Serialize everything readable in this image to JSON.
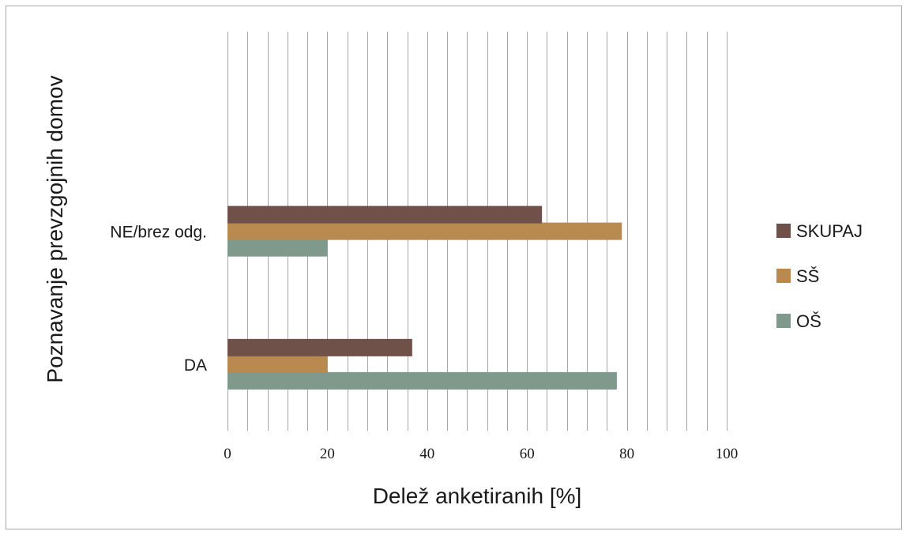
{
  "chart_data": {
    "type": "bar",
    "orientation": "horizontal",
    "categories": [
      "DA",
      "NE/brez odg."
    ],
    "series": [
      {
        "name": "OŠ",
        "values": [
          78,
          20
        ],
        "color": "#7f9a8c"
      },
      {
        "name": "SŠ",
        "values": [
          20,
          79
        ],
        "color": "#b98a50"
      },
      {
        "name": "SKUPAJ",
        "values": [
          37,
          63
        ],
        "color": "#6f5149"
      }
    ],
    "legend_order": [
      "SKUPAJ",
      "SŠ",
      "OŠ"
    ],
    "title": "",
    "xlabel": "Delež anketiranih [%]",
    "ylabel": "Poznavanje prevzgojnih domov",
    "xlim": [
      0,
      100
    ],
    "major_ticks": [
      0,
      20,
      40,
      60,
      80,
      100
    ],
    "minor_step": 4,
    "grid": true,
    "grid_color": "#a6a6a6",
    "legend_position": "right"
  }
}
